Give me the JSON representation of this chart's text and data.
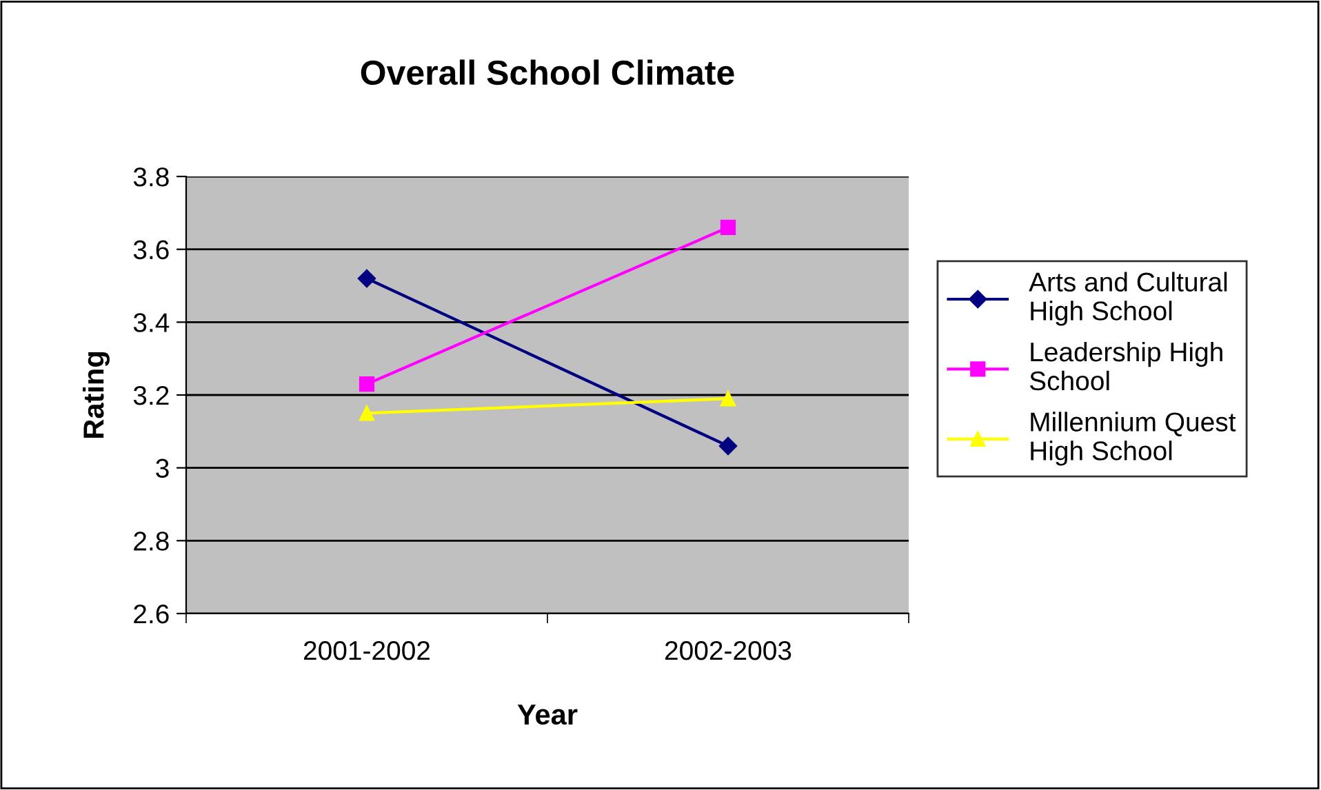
{
  "chart_data": {
    "type": "line",
    "title": "Overall School Climate",
    "xlabel": "Year",
    "ylabel": "Rating",
    "categories": [
      "2001-2002",
      "2002-2003"
    ],
    "series": [
      {
        "name": "Arts and Cultural\nHigh School",
        "color": "#000080",
        "marker": "diamond",
        "values": [
          3.52,
          3.06
        ]
      },
      {
        "name": "Leadership High\nSchool",
        "color": "#ff00ff",
        "marker": "square",
        "values": [
          3.23,
          3.66
        ]
      },
      {
        "name": "Millennium Quest\nHigh School",
        "color": "#ffff00",
        "marker": "triangle",
        "values": [
          3.15,
          3.19
        ]
      }
    ],
    "ylim": [
      2.6,
      3.8
    ],
    "yticks": [
      2.6,
      2.8,
      3,
      3.2,
      3.4,
      3.6,
      3.8
    ],
    "grid": "y",
    "legend": "right"
  }
}
